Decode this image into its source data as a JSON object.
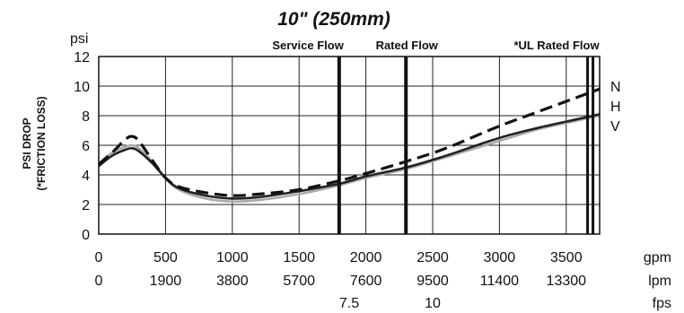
{
  "chart_data": {
    "type": "line",
    "title": "10\"  (250mm)",
    "ylabel_line1": "PSI DROP",
    "ylabel_line2": "(*FRICTION LOSS)",
    "y_unit": "psi",
    "ylim": [
      0,
      12
    ],
    "y_ticks": [
      "0",
      "2",
      "4",
      "6",
      "8",
      "10",
      "12"
    ],
    "xlim": [
      0,
      3750
    ],
    "x_tick_rows": [
      {
        "unit": "gpm",
        "ticks": [
          {
            "at": 0,
            "label": "0"
          },
          {
            "at": 500,
            "label": "500"
          },
          {
            "at": 1000,
            "label": "1000"
          },
          {
            "at": 1500,
            "label": "1500"
          },
          {
            "at": 2000,
            "label": "2000"
          },
          {
            "at": 2500,
            "label": "2500"
          },
          {
            "at": 3000,
            "label": "3000"
          },
          {
            "at": 3500,
            "label": "3500"
          }
        ]
      },
      {
        "unit": "lpm",
        "ticks": [
          {
            "at": 0,
            "label": "0"
          },
          {
            "at": 500,
            "label": "1900"
          },
          {
            "at": 1000,
            "label": "3800"
          },
          {
            "at": 1500,
            "label": "5700"
          },
          {
            "at": 2000,
            "label": "7600"
          },
          {
            "at": 2500,
            "label": "9500"
          },
          {
            "at": 3000,
            "label": "11400"
          },
          {
            "at": 3500,
            "label": "13300"
          }
        ]
      },
      {
        "unit": "fps",
        "ticks": [
          {
            "at": 1875,
            "label": "7.5"
          },
          {
            "at": 2500,
            "label": "10"
          }
        ]
      }
    ],
    "grid": true,
    "markers": [
      {
        "label": "Service Flow",
        "x": 1800
      },
      {
        "label": "Rated Flow",
        "x": 2300
      },
      {
        "label": "*UL Rated Flow",
        "x": 3680
      }
    ],
    "series": [
      {
        "name": "N",
        "style": "dashed",
        "color": "#111111",
        "x": [
          0,
          100,
          200,
          250,
          300,
          400,
          500,
          600,
          800,
          1000,
          1200,
          1500,
          1800,
          2000,
          2300,
          2600,
          3000,
          3300,
          3600,
          3750
        ],
        "y": [
          4.7,
          5.5,
          6.4,
          6.6,
          6.3,
          5.0,
          3.8,
          3.2,
          2.8,
          2.6,
          2.7,
          3.0,
          3.6,
          4.1,
          4.9,
          5.8,
          7.3,
          8.3,
          9.3,
          9.8
        ]
      },
      {
        "name": "H",
        "style": "solid",
        "color": "#222222",
        "x": [
          0,
          100,
          200,
          250,
          300,
          400,
          500,
          600,
          800,
          1000,
          1200,
          1500,
          1800,
          2000,
          2300,
          2600,
          3000,
          3300,
          3600,
          3750
        ],
        "y": [
          4.6,
          5.3,
          5.7,
          5.8,
          5.6,
          4.8,
          3.8,
          3.1,
          2.6,
          2.4,
          2.5,
          2.9,
          3.4,
          3.9,
          4.5,
          5.3,
          6.5,
          7.2,
          7.8,
          8.1
        ]
      },
      {
        "name": "V",
        "style": "solid",
        "color": "#aaaaaa",
        "x": [
          0,
          100,
          200,
          250,
          300,
          400,
          500,
          600,
          800,
          1000,
          1200,
          1500,
          1800,
          2000,
          2300,
          2600,
          3000,
          3300,
          3600,
          3750
        ],
        "y": [
          4.8,
          5.5,
          5.9,
          6.0,
          5.8,
          4.9,
          3.8,
          3.0,
          2.4,
          2.2,
          2.3,
          2.7,
          3.3,
          3.8,
          4.4,
          5.2,
          6.3,
          7.1,
          7.7,
          8.0
        ]
      }
    ]
  }
}
